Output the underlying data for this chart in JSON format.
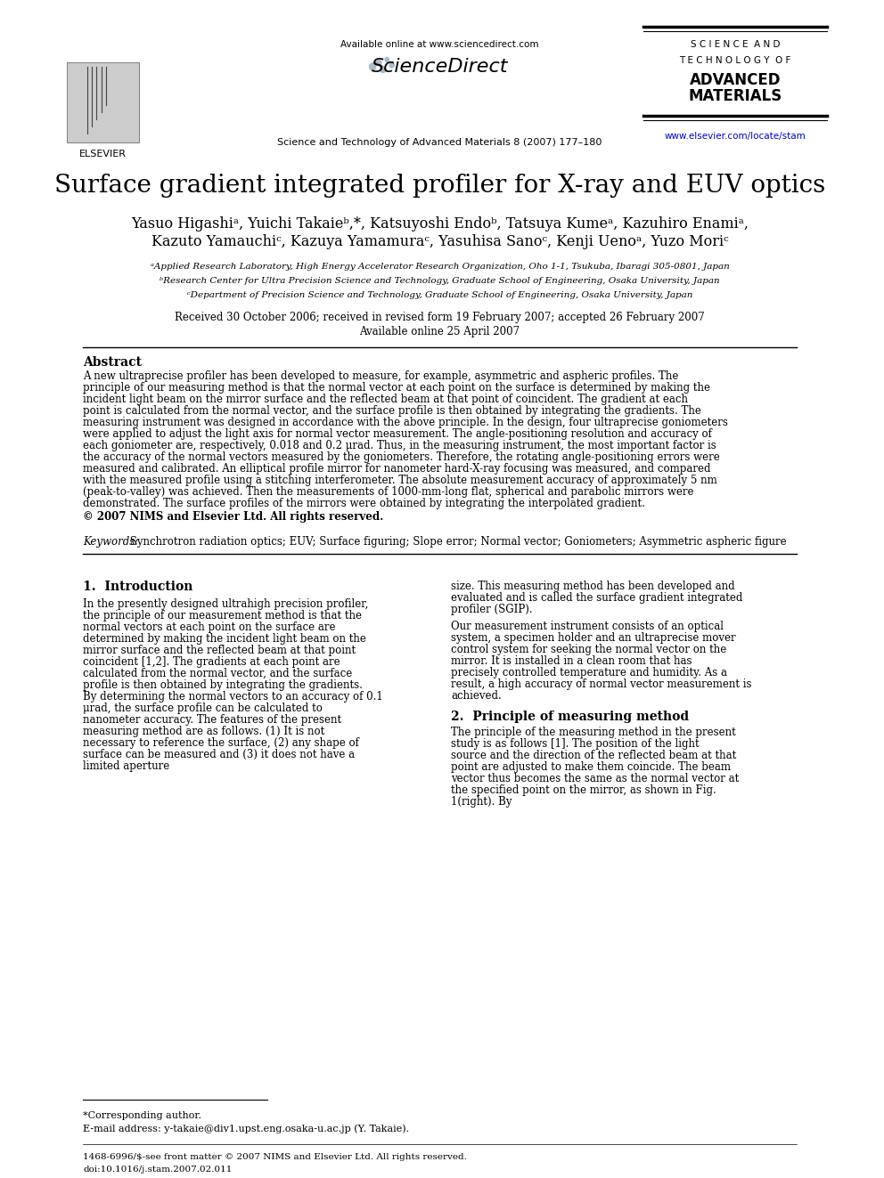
{
  "title": "Surface gradient integrated profiler for X-ray and EUV optics",
  "authors_line1": "Yasuo Higashiᵃ, Yuichi Takaieᵇ,*, Katsuyoshi Endoᵇ, Tatsuya Kumeᵃ, Kazuhiro Enamiᵃ,",
  "authors_line2": "Kazuto Yamauchiᶜ, Kazuya Yamamuraᶜ, Yasuhisa Sanoᶜ, Kenji Uenoᵃ, Yuzo Moriᶜ",
  "affil_a": "ᵃApplied Research Laboratory, High Energy Accelerator Research Organization, Oho 1-1, Tsukuba, Ibaragi 305-0801, Japan",
  "affil_b": "ᵇResearch Center for Ultra Precision Science and Technology, Graduate School of Engineering, Osaka University, Japan",
  "affil_c": "ᶜDepartment of Precision Science and Technology, Graduate School of Engineering, Osaka University, Japan",
  "received": "Received 30 October 2006; received in revised form 19 February 2007; accepted 26 February 2007",
  "available": "Available online 25 April 2007",
  "journal_header": "Science and Technology of Advanced Materials 8 (2007) 177–180",
  "available_online": "Available online at www.sciencedirect.com",
  "journal_name_lines": [
    "S C I E N C E  A N D",
    "T E C H N O L O G Y  O F",
    "ADVANCED",
    "MATERIALS"
  ],
  "website": "www.elsevier.com/locate/stam",
  "abstract_title": "Abstract",
  "abstract_text": "A new ultraprecise profiler has been developed to measure, for example, asymmetric and aspheric profiles. The principle of our measuring method is that the normal vector at each point on the surface is determined by making the incident light beam on the mirror surface and the reflected beam at that point of coincident. The gradient at each point is calculated from the normal vector, and the surface profile is then obtained by integrating the gradients. The measuring instrument was designed in accordance with the above principle. In the design, four ultraprecise goniometers were applied to adjust the light axis for normal vector measurement. The angle-positioning resolution and accuracy of each goniometer are, respectively, 0.018 and 0.2 μrad. Thus, in the measuring instrument, the most important factor is the accuracy of the normal vectors measured by the goniometers. Therefore, the rotating angle-positioning errors were measured and calibrated. An elliptical profile mirror for nanometer hard-X-ray focusing was measured, and compared with the measured profile using a stitching interferometer. The absolute measurement accuracy of approximately 5 nm (peak-to-valley) was achieved. Then the measurements of 1000-mm-long flat, spherical and parabolic mirrors were demonstrated. The surface profiles of the mirrors were obtained by integrating the interpolated gradient.",
  "copyright": "© 2007 NIMS and Elsevier Ltd. All rights reserved.",
  "keywords_label": "Keywords:",
  "keywords_text": " Synchrotron radiation optics; EUV; Surface figuring; Slope error; Normal vector; Goniometers; Asymmetric aspheric figure",
  "section1_title": "1.  Introduction",
  "intro_left": "In the presently designed ultrahigh precision profiler, the principle of our measurement method is that the normal vectors at each point on the surface are determined by making the incident light beam on the mirror surface and the reflected beam at that point coincident [1,2]. The gradients at each point are calculated from the normal vector, and the surface profile is then obtained by integrating the gradients. By determining the normal vectors to an accuracy of 0.1 μrad, the surface profile can be calculated to nanometer accuracy. The features of the present measuring method are as follows. (1) It is not necessary to reference the surface, (2) any shape of surface can be measured and (3) it does not have a limited aperture",
  "intro_right_top": "size. This measuring method has been developed and evaluated and is called the surface gradient integrated profiler (SGIP).",
  "intro_right_mid": "Our measurement instrument consists of an optical system, a specimen holder and an ultraprecise mover control system for seeking the normal vector on the mirror. It is installed in a clean room that has precisely controlled temperature and humidity. As a result, a high accuracy of normal vector measurement is achieved.",
  "section2_title": "2.  Principle of measuring method",
  "section2_text": "The principle of the measuring method in the present study is as follows [1]. The position of the light source and the direction of the reflected beam at that point are adjusted to make them coincide. The beam vector thus becomes the same as the normal vector at the specified point on the mirror, as shown in Fig. 1(right). By",
  "footnote_star": "*Corresponding author.",
  "footnote_email": "E-mail address: y-takaie@div1.upst.eng.osaka-u.ac.jp (Y. Takaie).",
  "footer_issn": "1468-6996/$-see front matter © 2007 NIMS and Elsevier Ltd. All rights reserved.",
  "footer_doi": "doi:10.1016/j.stam.2007.02.011",
  "bg_color": "#ffffff",
  "text_color": "#000000",
  "link_color": "#0000cc"
}
